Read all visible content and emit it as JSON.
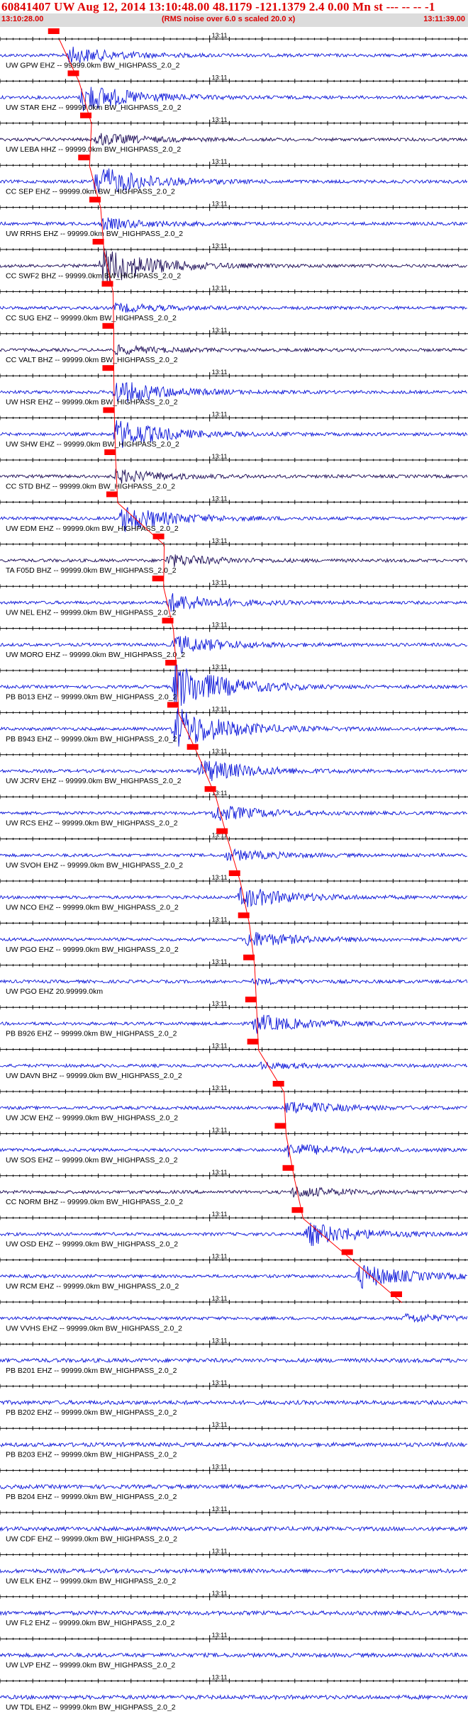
{
  "header": {
    "title": "60841407 UW Aug 12, 2014 13:10:48.00   48.1179  -121.1379  2.4 0.00 Mn st --- -- --   -1",
    "start_time": "13:10:28.00",
    "rms_note": "(RMS noise over 6.0 s scaled 20.0 x)",
    "end_time": "13:11:39.00"
  },
  "colors": {
    "trace": "#0a14d8",
    "trace_dark": "#1a0a55",
    "pick": "#ff0000",
    "text": "#000000",
    "header_text": "#dd0000"
  },
  "chart_data": {
    "type": "line",
    "title": "60841407 UW Aug 12, 2014 13:10:48.00   48.1179  -121.1379  2.4 0.00 Mn st --- -- --   -1",
    "x_axis": {
      "start": "13:10:28.00",
      "end": "13:11:39.00",
      "minute_mark": "13:11",
      "tick_interval_s": 1
    },
    "series": [
      {
        "station": "UW GPW EHZ -- 99999.0km BW_HIGHPASS_2.0_2",
        "pick_s": 8.2,
        "onset_s": 10,
        "env_amp": 12,
        "dark": false
      },
      {
        "station": "UW STAR EHZ -- 99999.0km BW_HIGHPASS_2.0_2",
        "pick_s": 11.2,
        "onset_s": 12,
        "env_amp": 22,
        "dark": false
      },
      {
        "station": "UW LEBA HHZ -- 99999.0km BW_HIGHPASS_2.0_2",
        "pick_s": 13.1,
        "onset_s": 14,
        "env_amp": 9,
        "dark": true
      },
      {
        "station": "CC SEP EHZ -- 99999.0km BW_HIGHPASS_2.0_2",
        "pick_s": 12.8,
        "onset_s": 14,
        "env_amp": 24,
        "dark": false
      },
      {
        "station": "UW RRHS EHZ -- 99999.0km BW_HIGHPASS_2.0_2",
        "pick_s": 14.5,
        "onset_s": 15,
        "env_amp": 8,
        "dark": false
      },
      {
        "station": "CC SWF2 BHZ -- 99999.0km BW_HIGHPASS_2.0_2",
        "pick_s": 15.0,
        "onset_s": 15,
        "env_amp": 30,
        "dark": true
      },
      {
        "station": "CC SUG EHZ -- 99999.0km BW_HIGHPASS_2.0_2",
        "pick_s": 16.4,
        "onset_s": 17,
        "env_amp": 6,
        "dark": false
      },
      {
        "station": "CC VALT BHZ -- 99999.0km BW_HIGHPASS_2.0_2",
        "pick_s": 16.5,
        "onset_s": 17,
        "env_amp": 6,
        "dark": true
      },
      {
        "station": "UW HSR EHZ -- 99999.0km BW_HIGHPASS_2.0_2",
        "pick_s": 16.5,
        "onset_s": 17,
        "env_amp": 18,
        "dark": false
      },
      {
        "station": "UW SHW EHZ -- 99999.0km BW_HIGHPASS_2.0_2",
        "pick_s": 16.6,
        "onset_s": 17,
        "env_amp": 22,
        "dark": false
      },
      {
        "station": "CC STD BHZ -- 99999.0km BW_HIGHPASS_2.0_2",
        "pick_s": 16.8,
        "onset_s": 17,
        "env_amp": 10,
        "dark": true
      },
      {
        "station": "UW EDM EHZ -- 99999.0km BW_HIGHPASS_2.0_2",
        "pick_s": 17.1,
        "onset_s": 18,
        "env_amp": 20,
        "dark": false
      },
      {
        "station": "TA F05D BHZ -- 99999.0km BW_HIGHPASS_2.0_2",
        "pick_s": 24.2,
        "onset_s": 25,
        "env_amp": 9,
        "dark": true
      },
      {
        "station": "UW NEL EHZ -- 99999.0km BW_HIGHPASS_2.0_2",
        "pick_s": 24.1,
        "onset_s": 25,
        "env_amp": 14,
        "dark": false
      },
      {
        "station": "UW MORO EHZ -- 99999.0km BW_HIGHPASS_2.0_2",
        "pick_s": 25.6,
        "onset_s": 26,
        "env_amp": 14,
        "dark": false
      },
      {
        "station": "PB B013 EHZ -- 99999.0km BW_HIGHPASS_2.0_2",
        "pick_s": 26.1,
        "onset_s": 26,
        "env_amp": 36,
        "dark": false
      },
      {
        "station": "PB B943 EHZ -- 99999.0km BW_HIGHPASS_2.0_2",
        "pick_s": 26.4,
        "onset_s": 26,
        "env_amp": 34,
        "dark": false
      },
      {
        "station": "UW JCRV EHZ -- 99999.0km BW_HIGHPASS_2.0_2",
        "pick_s": 29.4,
        "onset_s": 30,
        "env_amp": 18,
        "dark": false
      },
      {
        "station": "UW RCS EHZ -- 99999.0km BW_HIGHPASS_2.0_2",
        "pick_s": 32.1,
        "onset_s": 32,
        "env_amp": 12,
        "dark": false
      },
      {
        "station": "UW SVOH EHZ -- 99999.0km BW_HIGHPASS_2.0_2",
        "pick_s": 33.9,
        "onset_s": 34,
        "env_amp": 8,
        "dark": false
      },
      {
        "station": "UW NCO EHZ -- 99999.0km BW_HIGHPASS_2.0_2",
        "pick_s": 35.8,
        "onset_s": 36,
        "env_amp": 16,
        "dark": false
      },
      {
        "station": "UW PGO EHZ -- 99999.0km BW_HIGHPASS_2.0_2",
        "pick_s": 37.2,
        "onset_s": 37,
        "env_amp": 12,
        "dark": false
      },
      {
        "station": "UW PGO EHZ 20.99999.0km",
        "pick_s": 38.0,
        "onset_s": 38,
        "env_amp": 3,
        "dark": false
      },
      {
        "station": "PB B926 EHZ -- 99999.0km BW_HIGHPASS_2.0_2",
        "pick_s": 38.3,
        "onset_s": 38,
        "env_amp": 14,
        "dark": false
      },
      {
        "station": "UW DAVN BHZ -- 99999.0km BW_HIGHPASS_2.0_2",
        "pick_s": 38.6,
        "onset_s": 39,
        "env_amp": 4,
        "dark": false
      },
      {
        "station": "UW JCW EHZ -- 99999.0km BW_HIGHPASS_2.0_2",
        "pick_s": 42.5,
        "onset_s": 43,
        "env_amp": 10,
        "dark": false
      },
      {
        "station": "UW SOS EHZ -- 99999.0km BW_HIGHPASS_2.0_2",
        "pick_s": 42.8,
        "onset_s": 43,
        "env_amp": 10,
        "dark": false
      },
      {
        "station": "CC NORM BHZ -- 99999.0km BW_HIGHPASS_2.0_2",
        "pick_s": 44.0,
        "onset_s": 44,
        "env_amp": 8,
        "dark": true
      },
      {
        "station": "UW OSD EHZ -- 99999.0km BW_HIGHPASS_2.0_2",
        "pick_s": 45.4,
        "onset_s": 46,
        "env_amp": 18,
        "dark": false
      },
      {
        "station": "UW RCM EHZ -- 99999.0km BW_HIGHPASS_2.0_2",
        "pick_s": 53.0,
        "onset_s": 54,
        "env_amp": 18,
        "dark": false
      },
      {
        "station": "UW VVHS EHZ -- 99999.0km BW_HIGHPASS_2.0_2",
        "pick_s": 60.5,
        "onset_s": 61,
        "env_amp": 6,
        "dark": false
      },
      {
        "station": "PB B201 EHZ -- 99999.0km BW_HIGHPASS_2.0_2",
        "pick_s": null,
        "onset_s": null,
        "env_amp": 0,
        "dark": false
      },
      {
        "station": "PB B202 EHZ -- 99999.0km BW_HIGHPASS_2.0_2",
        "pick_s": null,
        "onset_s": null,
        "env_amp": 0,
        "dark": false
      },
      {
        "station": "PB B203 EHZ -- 99999.0km BW_HIGHPASS_2.0_2",
        "pick_s": null,
        "onset_s": null,
        "env_amp": 0,
        "dark": false
      },
      {
        "station": "PB B204 EHZ -- 99999.0km BW_HIGHPASS_2.0_2",
        "pick_s": null,
        "onset_s": null,
        "env_amp": 0,
        "dark": false
      },
      {
        "station": "UW CDF EHZ -- 99999.0km BW_HIGHPASS_2.0_2",
        "pick_s": null,
        "onset_s": null,
        "env_amp": 0,
        "dark": false
      },
      {
        "station": "UW ELK EHZ -- 99999.0km BW_HIGHPASS_2.0_2",
        "pick_s": null,
        "onset_s": null,
        "env_amp": 0,
        "dark": false
      },
      {
        "station": "UW FL2 EHZ -- 99999.0km BW_HIGHPASS_2.0_2",
        "pick_s": null,
        "onset_s": null,
        "env_amp": 0,
        "dark": false
      },
      {
        "station": "UW LVP EHZ -- 99999.0km BW_HIGHPASS_2.0_2",
        "pick_s": null,
        "onset_s": null,
        "env_amp": 0,
        "dark": false
      },
      {
        "station": "UW TDL EHZ -- 99999.0km BW_HIGHPASS_2.0_2",
        "pick_s": null,
        "onset_s": null,
        "env_amp": 0,
        "dark": false
      }
    ]
  }
}
